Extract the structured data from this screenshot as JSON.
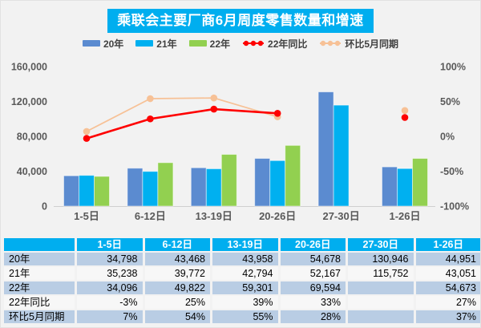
{
  "title": "乘联会主要厂商6月周度零售数量和增速",
  "colors": {
    "accent_cyan": "#00AEEF",
    "bar_2020": "#5B8BD0",
    "bar_2021": "#00B0F0",
    "bar_2022": "#92D050",
    "line_yoy": "#FE0000",
    "line_mom": "#F7C196",
    "axis_text": "#595959",
    "table_row_blue": "#B9CDE4",
    "background": "#F2F2F2"
  },
  "legend": {
    "items": [
      {
        "label": "20年",
        "type": "bar",
        "color": "#5B8BD0"
      },
      {
        "label": "21年",
        "type": "bar",
        "color": "#00B0F0"
      },
      {
        "label": "22年",
        "type": "bar",
        "color": "#92D050"
      },
      {
        "label": "22年同比",
        "type": "line",
        "color": "#FE0000"
      },
      {
        "label": "环比5月同期",
        "type": "line",
        "color": "#F7C196"
      }
    ]
  },
  "chart_data": {
    "type": "bar",
    "subtype": "combo bar+line, dual axis",
    "title": "乘联会主要厂商6月周度零售数量和增速",
    "categories": [
      "1-5日",
      "6-12日",
      "13-19日",
      "20-26日",
      "27-30日",
      "1-26日"
    ],
    "series": [
      {
        "name": "20年",
        "type": "bar",
        "axis": "left",
        "color": "#5B8BD0",
        "values": [
          34798,
          43468,
          43958,
          54678,
          130946,
          44951
        ]
      },
      {
        "name": "21年",
        "type": "bar",
        "axis": "left",
        "color": "#00B0F0",
        "values": [
          35238,
          39772,
          42794,
          52167,
          115752,
          43051
        ]
      },
      {
        "name": "22年",
        "type": "bar",
        "axis": "left",
        "color": "#92D050",
        "values": [
          34096,
          49822,
          59301,
          69594,
          null,
          54673
        ]
      },
      {
        "name": "22年同比",
        "type": "line",
        "axis": "right",
        "color": "#FE0000",
        "values": [
          -3,
          25,
          39,
          33,
          null,
          27
        ]
      },
      {
        "name": "环比5月同期",
        "type": "line",
        "axis": "right",
        "color": "#F7C196",
        "values": [
          7,
          54,
          55,
          28,
          null,
          37
        ]
      }
    ],
    "y_left": {
      "min": 0,
      "max": 160000,
      "tick_labels": [
        "160,000",
        "120,000",
        "80,000",
        "40,000",
        "0"
      ]
    },
    "y_right": {
      "min": -100,
      "max": 100,
      "tick_labels": [
        "100%",
        "50%",
        "0%",
        "-50%",
        "-100%"
      ]
    },
    "grid": false,
    "legend_position": "top"
  },
  "table": {
    "columns": [
      "",
      "1-5日",
      "6-12日",
      "13-19日",
      "20-26日",
      "27-30日",
      "1-26日"
    ],
    "rows": [
      {
        "label": "20年",
        "values": [
          "34,798",
          "43,468",
          "43,958",
          "54,678",
          "130,946",
          "44,951"
        ]
      },
      {
        "label": "21年",
        "values": [
          "35,238",
          "39,772",
          "42,794",
          "52,167",
          "115,752",
          "43,051"
        ]
      },
      {
        "label": "22年",
        "values": [
          "34,096",
          "49,822",
          "59,301",
          "69,594",
          "",
          "54,673"
        ]
      },
      {
        "label": "22年同比",
        "values": [
          "-3%",
          "25%",
          "39%",
          "33%",
          "",
          "27%"
        ]
      },
      {
        "label": "环比5月同期",
        "values": [
          "7%",
          "54%",
          "55%",
          "28%",
          "",
          "37%"
        ]
      }
    ]
  }
}
